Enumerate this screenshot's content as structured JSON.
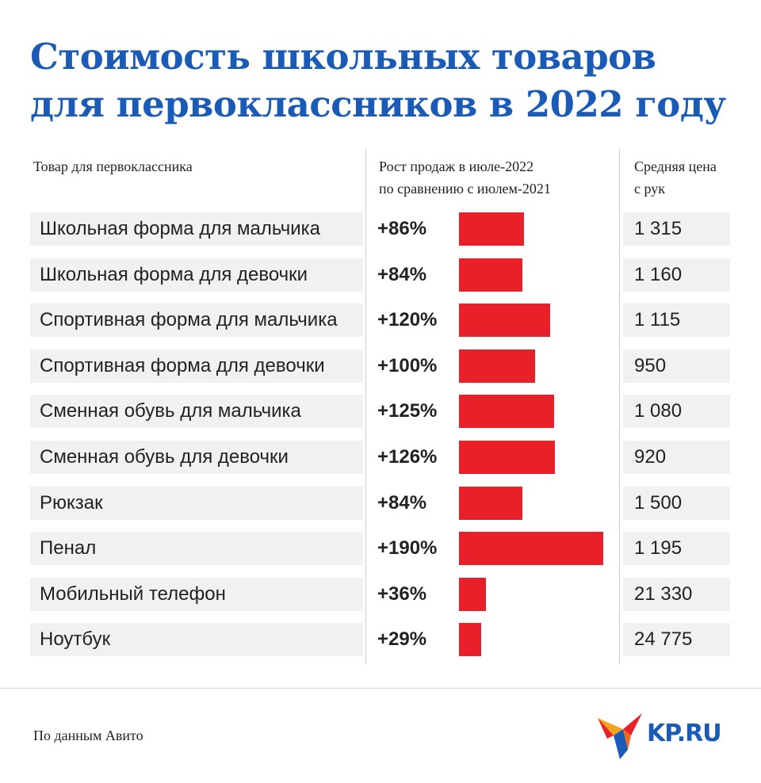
{
  "title": {
    "line1": "Стоимость школьных товаров",
    "line2": "для первоклассников в 2022 году"
  },
  "columns": {
    "item": "Товар для первоклассника",
    "growth_line1": "Рост продаж в июле-2022",
    "growth_line2": "по сравнению с июлем-2021",
    "price_line1": "Средняя цена",
    "price_line2": "с рук"
  },
  "chart_data": {
    "type": "bar",
    "categories": [
      "Школьная форма для мальчика",
      "Школьная форма для девочки",
      "Спортивная форма для мальчика",
      "Спортивная форма для девочки",
      "Сменная обувь для мальчика",
      "Сменная обувь для девочки",
      "Рюкзак",
      "Пенал",
      "Мобильный телефон",
      "Ноутбук"
    ],
    "values": [
      86,
      84,
      120,
      100,
      125,
      126,
      84,
      190,
      36,
      29
    ],
    "value_labels": [
      "+86%",
      "+84%",
      "+120%",
      "+100%",
      "+125%",
      "+126%",
      "+84%",
      "+190%",
      "+36%",
      "+29%"
    ],
    "prices": [
      "1 315",
      "1 160",
      "1 115",
      "950",
      "1 080",
      "920",
      "1 500",
      "1 195",
      "21 330",
      "24 775"
    ],
    "bar_color": "#e8202a",
    "orientation": "horizontal"
  },
  "colors": {
    "title": "#1a5bb8",
    "bar": "#e8202a",
    "row_background": "#f1f1f1"
  },
  "footer": {
    "source": "По данным Авито",
    "logo_text": "KP.RU"
  }
}
